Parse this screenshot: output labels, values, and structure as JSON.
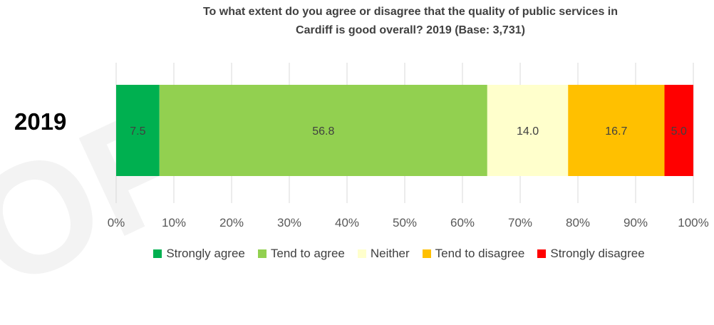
{
  "chart_data": {
    "type": "bar",
    "orientation": "horizontal-stacked-100",
    "title_lines": [
      "To what extent do you agree or disagree that the quality of public services in",
      "Cardiff is good overall? 2019 (Base: 3,731)"
    ],
    "categories": [
      "2019"
    ],
    "series": [
      {
        "name": "Strongly agree",
        "values": [
          7.5
        ],
        "label": "7.5",
        "color": "#00b050"
      },
      {
        "name": "Tend to agree",
        "values": [
          56.8
        ],
        "label": "56.8",
        "color": "#92d050"
      },
      {
        "name": "Neither",
        "values": [
          14.0
        ],
        "label": "14.0",
        "color": "#ffffcc"
      },
      {
        "name": "Tend to disagree",
        "values": [
          16.7
        ],
        "label": "16.7",
        "color": "#ffc000"
      },
      {
        "name": "Strongly disagree",
        "values": [
          5.0
        ],
        "label": "5.0",
        "color": "#ff0000"
      }
    ],
    "xlim": [
      0,
      100
    ],
    "x_ticks": [
      "0%",
      "10%",
      "20%",
      "30%",
      "40%",
      "50%",
      "60%",
      "70%",
      "80%",
      "90%",
      "100%"
    ],
    "grid": true,
    "legend_position": "bottom"
  }
}
